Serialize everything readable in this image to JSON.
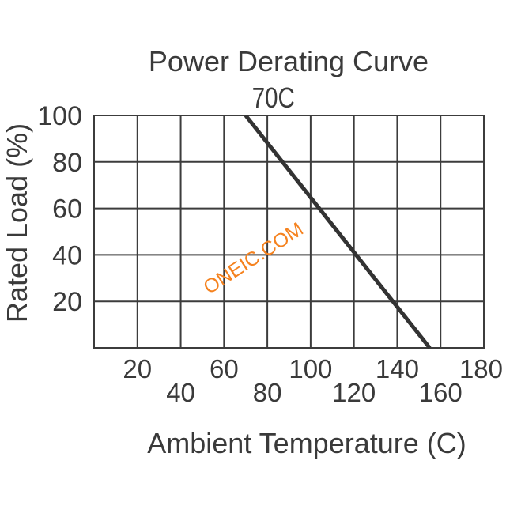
{
  "chart_data": {
    "type": "line",
    "title": "Power Derating Curve",
    "xlabel": "Ambient Temperature (C)",
    "ylabel": "Rated Load (%)",
    "xlim": [
      0,
      180
    ],
    "ylim": [
      0,
      100
    ],
    "x_ticks": [
      20,
      40,
      60,
      80,
      100,
      120,
      140,
      160,
      180
    ],
    "y_ticks": [
      20,
      40,
      60,
      80,
      100
    ],
    "x_tick_label_layout": "staggered",
    "grid": true,
    "series": [
      {
        "x": [
          70,
          155
        ],
        "y": [
          100,
          0
        ]
      }
    ],
    "annotations": [
      {
        "text": "70C",
        "x": 70,
        "y": 100
      }
    ],
    "colors": {
      "line": "#333333",
      "grid": "#3c3c3c",
      "text": "#3a3a3a",
      "background": "#ffffff"
    }
  },
  "watermark": {
    "text": "ONEIC.COM",
    "color": "#f5821f"
  }
}
